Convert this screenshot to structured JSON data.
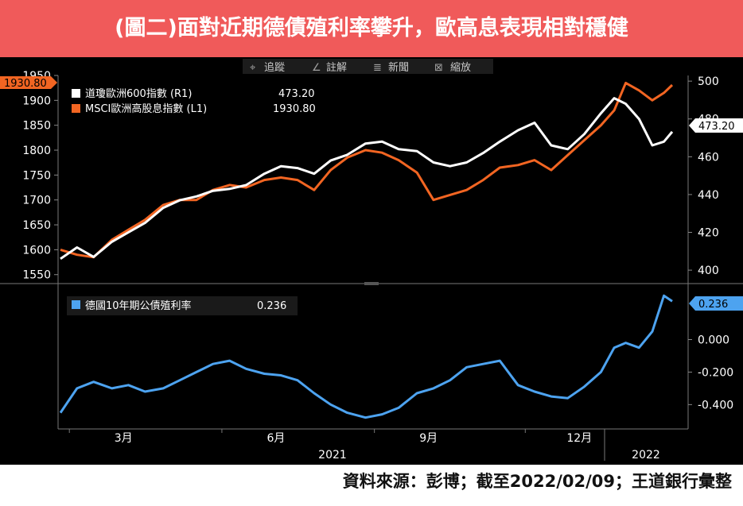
{
  "banner": {
    "title": "(圖二)面對近期德債殖利率攀升，歐高息表現相對穩健"
  },
  "toolbar": {
    "items": [
      "追蹤",
      "註解",
      "新聞",
      "縮放"
    ],
    "icons": [
      "crosshair-icon",
      "pen-icon",
      "news-icon",
      "zoom-icon"
    ]
  },
  "source": "資料來源：彭博；截至2022/02/09；王道銀行彙整",
  "colors": {
    "white_series": "#ffffff",
    "orange_series": "#f26522",
    "blue_series": "#4da3f0",
    "background": "#000000",
    "banner": "#f05a5a"
  },
  "chart_data": [
    {
      "type": "line",
      "x_axis": {
        "month_labels": [
          "3月",
          "6月",
          "9月",
          "12月"
        ],
        "year_labels": [
          "2021",
          "2022"
        ]
      },
      "left_axis": {
        "ylim": [
          1540,
          1950
        ],
        "ticks": [
          1550,
          1600,
          1650,
          1700,
          1750,
          1800,
          1850,
          1900,
          1950
        ]
      },
      "right_axis": {
        "ylim": [
          395,
          503
        ],
        "ticks": [
          400,
          420,
          440,
          460,
          480,
          500
        ]
      },
      "series": [
        {
          "name": "道瓊歐洲600指數 (R1)",
          "axis": "right",
          "last_value": "473.20",
          "x": [
            "2021-02-05",
            "2021-02-15",
            "2021-02-25",
            "2021-03-08",
            "2021-03-18",
            "2021-03-28",
            "2021-04-08",
            "2021-04-18",
            "2021-04-28",
            "2021-05-08",
            "2021-05-18",
            "2021-05-28",
            "2021-06-08",
            "2021-06-18",
            "2021-06-28",
            "2021-07-08",
            "2021-07-18",
            "2021-07-28",
            "2021-08-08",
            "2021-08-18",
            "2021-08-28",
            "2021-09-08",
            "2021-09-18",
            "2021-09-28",
            "2021-10-08",
            "2021-10-18",
            "2021-10-28",
            "2021-11-08",
            "2021-11-18",
            "2021-11-28",
            "2021-12-08",
            "2021-12-18",
            "2021-12-28",
            "2022-01-05",
            "2022-01-12",
            "2022-01-20",
            "2022-01-28",
            "2022-02-04",
            "2022-02-09"
          ],
          "values": [
            406,
            412,
            407,
            415,
            420,
            425,
            433,
            437,
            439,
            442,
            443,
            445,
            451,
            455,
            454,
            451,
            458,
            461,
            467,
            468,
            464,
            463,
            457,
            455,
            457,
            462,
            468,
            474,
            478,
            466,
            464,
            472,
            483,
            491,
            488,
            480,
            466,
            468,
            473.2
          ]
        },
        {
          "name": "MSCI歐洲高股息指數 (L1)",
          "axis": "left",
          "last_value": "1930.80",
          "x": [
            "2021-02-05",
            "2021-02-15",
            "2021-02-25",
            "2021-03-08",
            "2021-03-18",
            "2021-03-28",
            "2021-04-08",
            "2021-04-18",
            "2021-04-28",
            "2021-05-08",
            "2021-05-18",
            "2021-05-28",
            "2021-06-08",
            "2021-06-18",
            "2021-06-28",
            "2021-07-08",
            "2021-07-18",
            "2021-07-28",
            "2021-08-08",
            "2021-08-18",
            "2021-08-28",
            "2021-09-08",
            "2021-09-18",
            "2021-09-28",
            "2021-10-08",
            "2021-10-18",
            "2021-10-28",
            "2021-11-08",
            "2021-11-18",
            "2021-11-28",
            "2021-12-08",
            "2021-12-18",
            "2021-12-28",
            "2022-01-05",
            "2022-01-12",
            "2022-01-20",
            "2022-01-28",
            "2022-02-04",
            "2022-02-09"
          ],
          "values": [
            1600,
            1590,
            1585,
            1620,
            1640,
            1660,
            1690,
            1700,
            1700,
            1720,
            1730,
            1725,
            1740,
            1745,
            1740,
            1720,
            1760,
            1785,
            1800,
            1795,
            1780,
            1755,
            1700,
            1710,
            1720,
            1740,
            1765,
            1770,
            1780,
            1760,
            1790,
            1820,
            1850,
            1880,
            1935,
            1920,
            1900,
            1915,
            1930.8
          ]
        }
      ]
    },
    {
      "type": "line",
      "right_axis": {
        "ylim": [
          -0.54,
          0.32
        ],
        "ticks": [
          -0.4,
          -0.2,
          0.0
        ]
      },
      "right_axis_labels": [
        "-0.400",
        "-0.200",
        "0.000"
      ],
      "series": [
        {
          "name": "德國10年期公債殖利率",
          "axis": "right",
          "last_value": "0.236",
          "x": [
            "2021-02-05",
            "2021-02-15",
            "2021-02-25",
            "2021-03-08",
            "2021-03-18",
            "2021-03-28",
            "2021-04-08",
            "2021-04-18",
            "2021-04-28",
            "2021-05-08",
            "2021-05-18",
            "2021-05-28",
            "2021-06-08",
            "2021-06-18",
            "2021-06-28",
            "2021-07-08",
            "2021-07-18",
            "2021-07-28",
            "2021-08-08",
            "2021-08-18",
            "2021-08-28",
            "2021-09-08",
            "2021-09-18",
            "2021-09-28",
            "2021-10-08",
            "2021-10-18",
            "2021-10-28",
            "2021-11-08",
            "2021-11-18",
            "2021-11-28",
            "2021-12-08",
            "2021-12-18",
            "2021-12-28",
            "2022-01-05",
            "2022-01-12",
            "2022-01-20",
            "2022-01-28",
            "2022-02-04",
            "2022-02-09"
          ],
          "values": [
            -0.45,
            -0.3,
            -0.26,
            -0.3,
            -0.28,
            -0.32,
            -0.3,
            -0.25,
            -0.2,
            -0.15,
            -0.13,
            -0.18,
            -0.21,
            -0.22,
            -0.25,
            -0.33,
            -0.4,
            -0.45,
            -0.48,
            -0.46,
            -0.42,
            -0.33,
            -0.3,
            -0.25,
            -0.17,
            -0.15,
            -0.13,
            -0.28,
            -0.32,
            -0.35,
            -0.36,
            -0.29,
            -0.2,
            -0.05,
            -0.02,
            -0.05,
            0.05,
            0.27,
            0.236
          ]
        }
      ]
    }
  ]
}
